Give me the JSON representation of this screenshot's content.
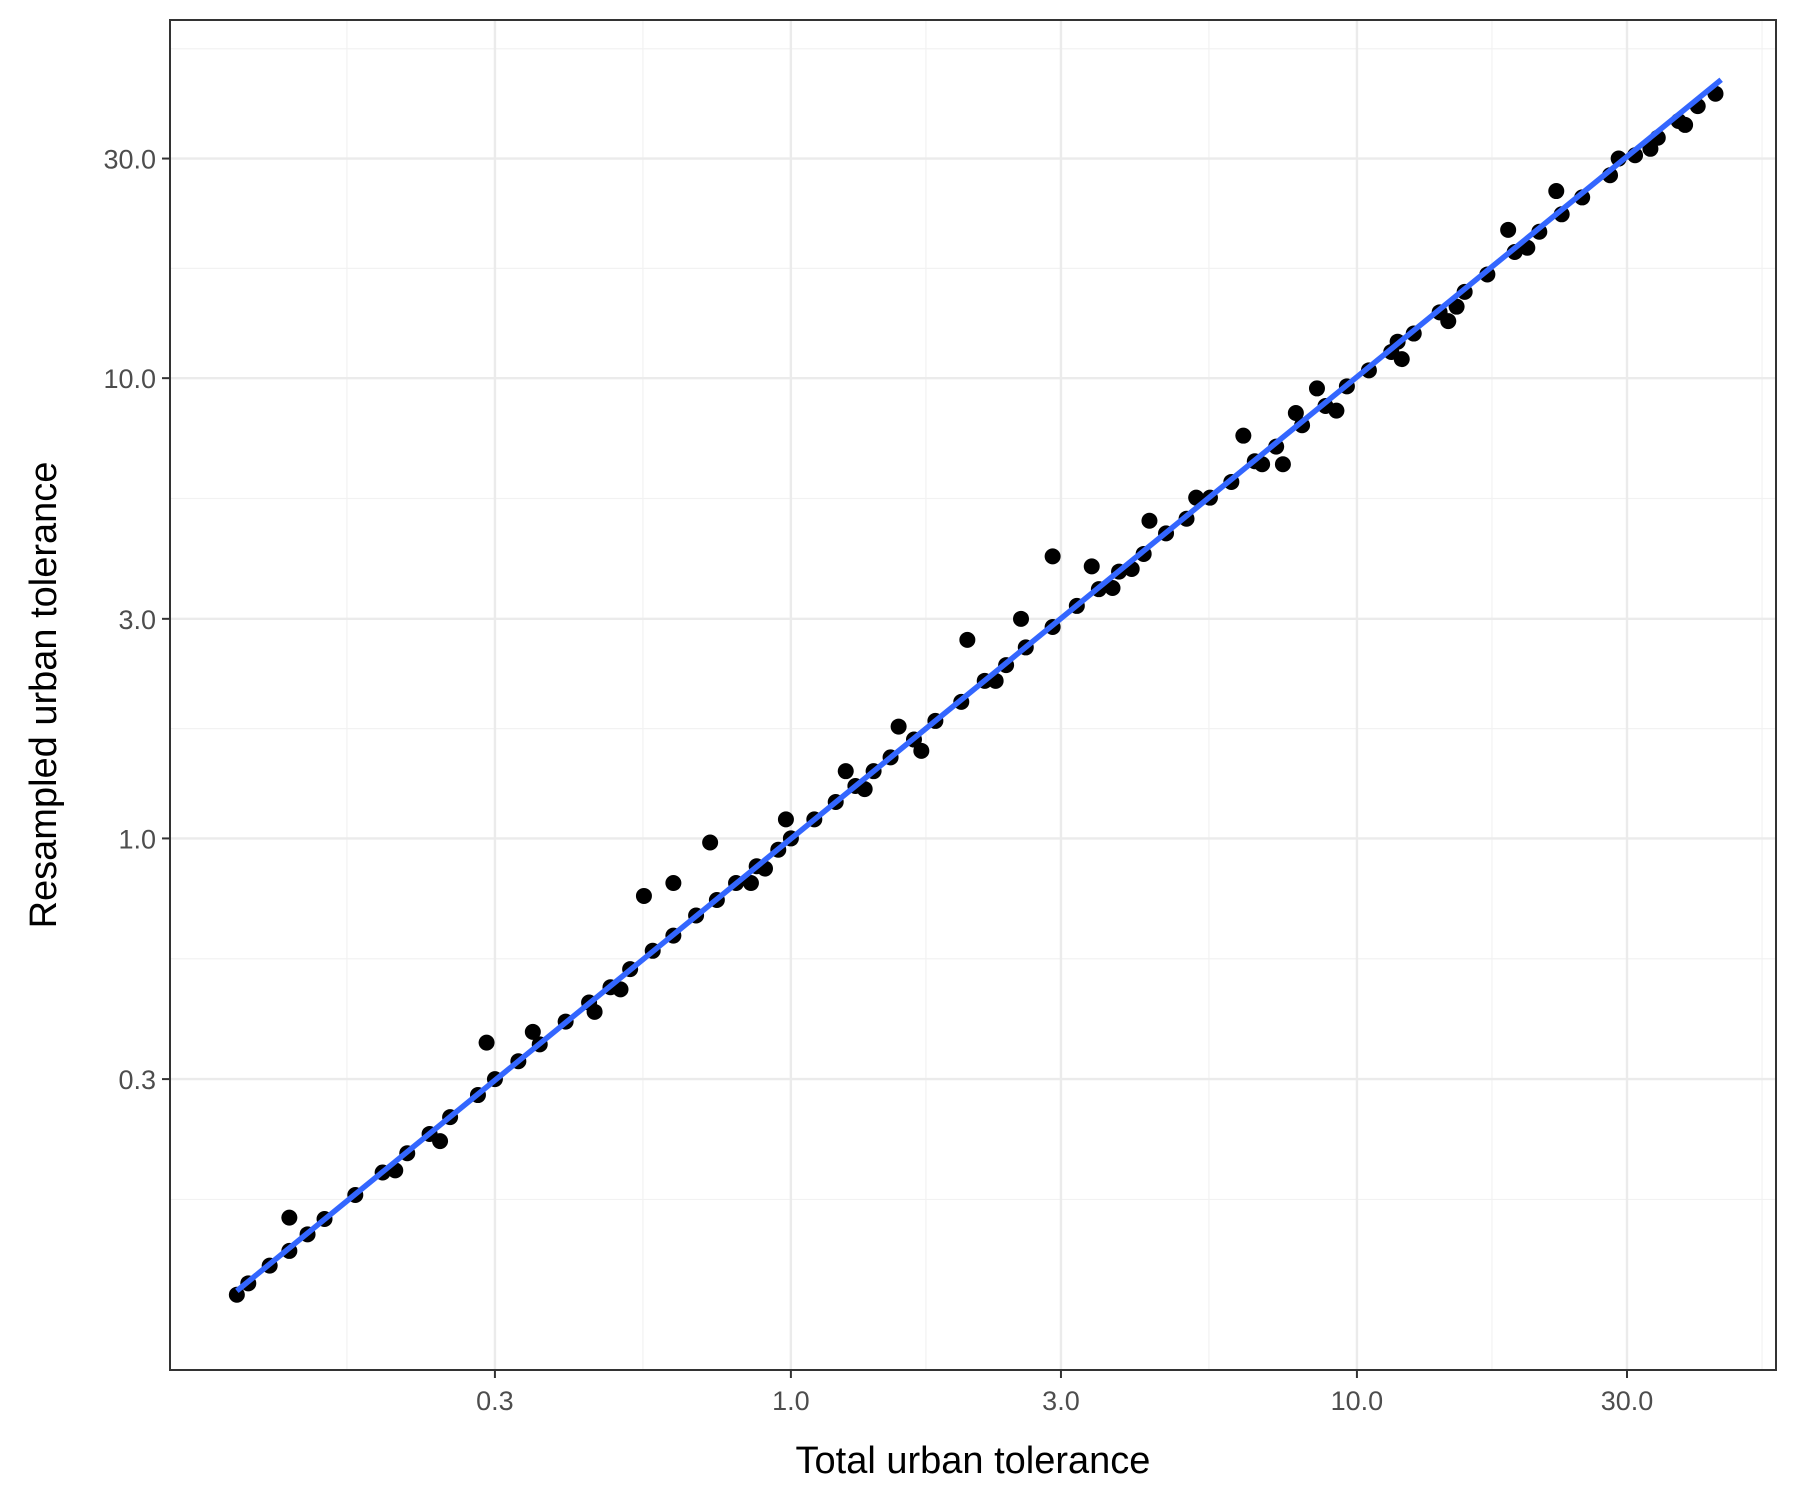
{
  "chart_data": {
    "type": "scatter",
    "title": "",
    "xlabel": "Total urban tolerance",
    "ylabel": "Resampled urban tolerance",
    "x_scale": "log10",
    "y_scale": "log10",
    "xlim": [
      0.08,
      55
    ],
    "ylim": [
      0.07,
      60
    ],
    "x_ticks": [
      0.3,
      1.0,
      3.0,
      10.0,
      30.0
    ],
    "x_tick_labels": [
      "0.3",
      "1.0",
      "3.0",
      "10.0",
      "30.0"
    ],
    "y_ticks": [
      0.3,
      1.0,
      3.0,
      10.0,
      30.0
    ],
    "y_tick_labels": [
      "0.3",
      "1.0",
      "3.0",
      "10.0",
      "30.0"
    ],
    "grid": true,
    "legend": "none",
    "point_color": "#000000",
    "fit_color": "#3366FF",
    "fit_line": {
      "x": [
        0.105,
        44.0
      ],
      "y": [
        0.104,
        44.5
      ]
    },
    "series": [
      {
        "x": [
          0.105,
          0.11,
          0.12,
          0.13,
          0.14,
          0.15,
          0.17,
          0.19,
          0.21,
          0.23,
          0.25,
          0.28,
          0.3,
          0.33,
          0.36,
          0.4,
          0.44,
          0.48,
          0.52,
          0.57,
          0.62,
          0.68,
          0.74,
          0.8,
          0.87,
          0.95,
          1.0,
          1.1,
          1.2,
          1.3,
          1.4,
          1.5,
          1.65,
          1.8,
          2.0,
          2.2,
          2.4,
          2.6,
          2.9,
          3.2,
          3.5,
          3.8,
          4.2,
          4.6,
          5.0,
          5.5,
          6.0,
          6.6,
          7.2,
          8.0,
          8.8,
          9.6,
          10.5,
          11.5,
          12.6,
          14.0,
          15.5,
          17.0,
          19.0,
          21.0,
          23.0,
          25.0,
          28.0,
          31.0,
          34.0,
          37.0,
          40.0,
          43.0,
          0.13,
          0.29,
          0.35,
          0.62,
          0.72,
          0.55,
          0.98,
          1.25,
          1.55,
          2.05,
          2.55,
          2.9,
          3.4,
          4.3,
          5.2,
          6.3,
          7.4,
          8.5,
          9.2,
          11.8,
          14.5,
          18.5,
          22.5,
          33.0,
          0.2,
          0.45,
          0.85,
          1.7,
          3.7,
          7.8,
          15.0,
          29.0,
          0.24,
          0.5,
          0.9,
          1.35,
          2.3,
          4.0,
          6.8,
          12.0,
          20.0,
          38.0
        ],
        "y": [
          0.102,
          0.108,
          0.118,
          0.127,
          0.138,
          0.149,
          0.168,
          0.188,
          0.207,
          0.228,
          0.248,
          0.277,
          0.3,
          0.328,
          0.357,
          0.4,
          0.44,
          0.475,
          0.52,
          0.57,
          0.615,
          0.68,
          0.735,
          0.8,
          0.87,
          0.945,
          1.0,
          1.1,
          1.2,
          1.3,
          1.4,
          1.5,
          1.64,
          1.8,
          1.98,
          2.2,
          2.38,
          2.6,
          2.88,
          3.2,
          3.48,
          3.8,
          4.15,
          4.6,
          4.95,
          5.5,
          5.95,
          6.6,
          7.1,
          7.9,
          8.7,
          9.6,
          10.4,
          11.4,
          12.5,
          13.9,
          15.4,
          16.8,
          18.8,
          20.8,
          22.7,
          24.7,
          27.6,
          30.5,
          33.3,
          36.2,
          39.0,
          41.5,
          0.15,
          0.36,
          0.38,
          0.8,
          0.98,
          0.75,
          1.1,
          1.4,
          1.75,
          2.7,
          3.0,
          4.1,
          3.9,
          4.9,
          5.5,
          7.5,
          6.5,
          9.5,
          8.5,
          12.0,
          13.3,
          21.0,
          25.5,
          31.5,
          0.19,
          0.42,
          0.8,
          1.55,
          3.5,
          8.4,
          14.3,
          30.0,
          0.22,
          0.47,
          0.86,
          1.28,
          2.2,
          3.85,
          6.5,
          11.0,
          19.2,
          35.5
        ]
      }
    ]
  }
}
